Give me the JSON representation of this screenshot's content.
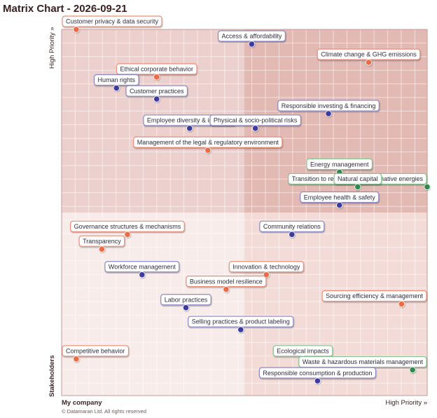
{
  "title": "Matrix Chart - 2026-09-21",
  "copyright": "© Datamaran Ltd. All rights reserved",
  "colors": {
    "orange": "#ee6a45",
    "navy": "#3c3aa0",
    "green": "#2e8b4e",
    "orange_border": "#ec8e76",
    "navy_border": "#8a89c6",
    "green_border": "#86c48f",
    "q_top_left": "#ecd0ce",
    "q_top_right": "#e3b9b4",
    "q_bottom_left": "#f8ecea",
    "q_bottom_right": "#f3dcd8"
  },
  "chart_data": {
    "type": "scatter",
    "title": "Matrix Chart - 2026-09-21",
    "xlabel": "My company",
    "xlabel_high": "High Priority »",
    "ylabel": "Stakeholders",
    "ylabel_high": "High Priority »",
    "xlim": [
      0,
      100
    ],
    "ylim": [
      0,
      100
    ],
    "quadrant_split": {
      "x": 50,
      "y": 50
    },
    "grid": true,
    "points": [
      {
        "label": "Customer privacy & data security",
        "x": 4,
        "y": 100,
        "color": "orange"
      },
      {
        "label": "Access & affordability",
        "x": 52,
        "y": 96,
        "color": "navy"
      },
      {
        "label": "Climate change & GHG emissions",
        "x": 84,
        "y": 91,
        "color": "orange"
      },
      {
        "label": "Ethical corporate behavior",
        "x": 26,
        "y": 87,
        "color": "orange"
      },
      {
        "label": "Human rights",
        "x": 15,
        "y": 84,
        "color": "navy"
      },
      {
        "label": "Customer practices",
        "x": 26,
        "y": 81,
        "color": "navy"
      },
      {
        "label": "Responsible investing & financing",
        "x": 73,
        "y": 77,
        "color": "navy"
      },
      {
        "label": "Employee diversity & inclusion",
        "x": 35,
        "y": 73,
        "color": "navy"
      },
      {
        "label": "Physical & socio-political risks",
        "x": 53,
        "y": 73,
        "color": "navy"
      },
      {
        "label": "Management of the legal & regulatory environment",
        "x": 40,
        "y": 67,
        "color": "orange"
      },
      {
        "label": "Energy management",
        "x": 76,
        "y": 61,
        "color": "green"
      },
      {
        "label": "Transition to renewables & alternative energies",
        "x": 100,
        "y": 57,
        "color": "green"
      },
      {
        "label": "Natural capital",
        "x": 81,
        "y": 57,
        "color": "green"
      },
      {
        "label": "Employee health & safety",
        "x": 76,
        "y": 52,
        "color": "navy"
      },
      {
        "label": "Governance structures & mechanisms",
        "x": 18,
        "y": 44,
        "color": "orange"
      },
      {
        "label": "Transparency",
        "x": 11,
        "y": 40,
        "color": "orange"
      },
      {
        "label": "Community relations",
        "x": 63,
        "y": 44,
        "color": "navy"
      },
      {
        "label": "Workforce management",
        "x": 22,
        "y": 33,
        "color": "navy"
      },
      {
        "label": "Innovation & technology",
        "x": 56,
        "y": 33,
        "color": "orange"
      },
      {
        "label": "Business model resilience",
        "x": 45,
        "y": 29,
        "color": "orange"
      },
      {
        "label": "Sourcing efficiency & management",
        "x": 93,
        "y": 25,
        "color": "orange"
      },
      {
        "label": "Labor practices",
        "x": 34,
        "y": 24,
        "color": "navy"
      },
      {
        "label": "Selling practices & product labeling",
        "x": 49,
        "y": 18,
        "color": "navy"
      },
      {
        "label": "Competitive behavior",
        "x": 4,
        "y": 10,
        "color": "orange"
      },
      {
        "label": "Ecological impacts",
        "x": 66,
        "y": 10,
        "color": "green"
      },
      {
        "label": "Waste & hazardous materials management",
        "x": 96,
        "y": 7,
        "color": "green"
      },
      {
        "label": "Responsible consumption & production",
        "x": 70,
        "y": 4,
        "color": "navy"
      }
    ]
  }
}
